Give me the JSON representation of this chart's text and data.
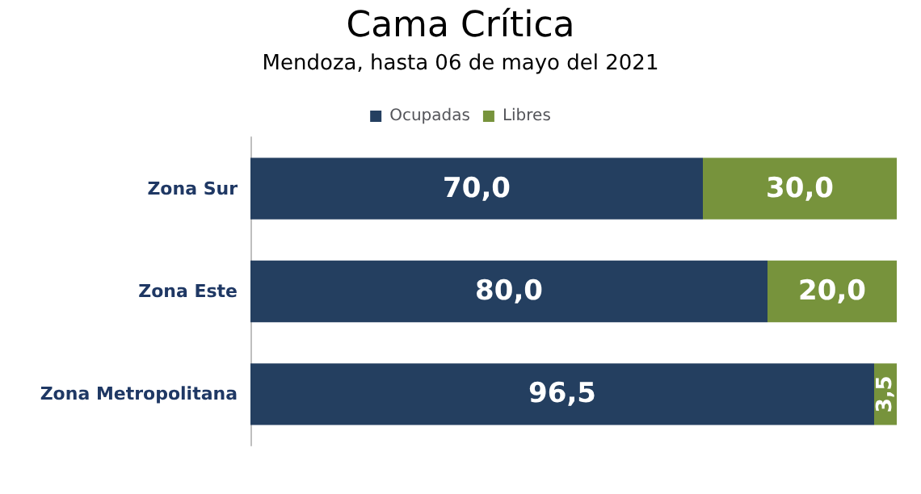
{
  "chart_data": {
    "type": "bar",
    "orientation": "horizontal",
    "stacked": true,
    "title": "Cama Crítica",
    "subtitle": "Mendoza, hasta 06 de mayo del 2021",
    "categories": [
      "Zona Sur",
      "Zona Este",
      "Zona Metropolitana"
    ],
    "legend": "top",
    "series": [
      {
        "name": "Ocupadas",
        "color": "#243f60",
        "values": [
          70,
          80,
          96.5
        ],
        "value_labels": [
          "70,0",
          "80,0",
          "96,5"
        ]
      },
      {
        "name": "Libres",
        "color": "#77933c",
        "values": [
          30,
          20,
          3.5
        ],
        "value_labels": [
          "30,0",
          "20,0",
          "3,5"
        ]
      }
    ]
  }
}
